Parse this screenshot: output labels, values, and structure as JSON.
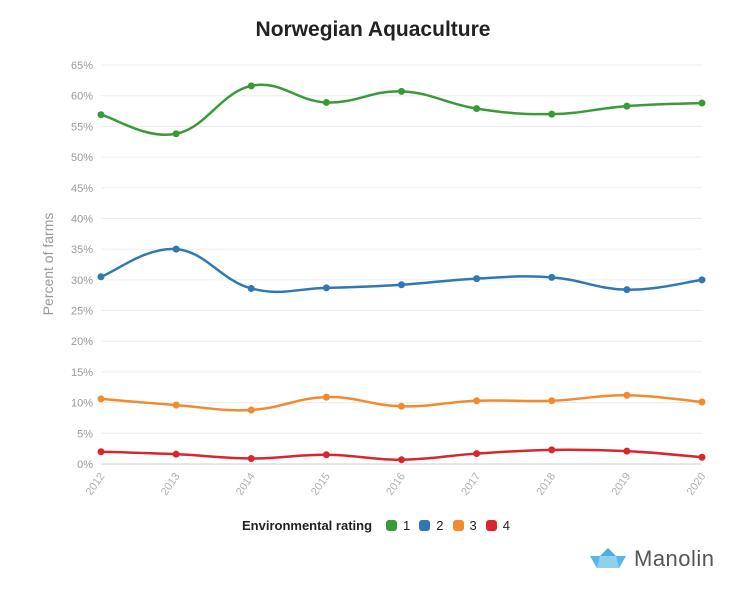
{
  "chart_data": {
    "type": "line",
    "title": "Norwegian Aquaculture",
    "xlabel": "",
    "ylabel": "Percent of farms",
    "x": [
      "2012",
      "2013",
      "2014",
      "2015",
      "2016",
      "2017",
      "2018",
      "2019",
      "2020"
    ],
    "ylim": [
      0,
      65
    ],
    "y_ticks": [
      "0%",
      "5%",
      "10%",
      "15%",
      "20%",
      "25%",
      "30%",
      "35%",
      "40%",
      "45%",
      "50%",
      "55%",
      "60%",
      "65%"
    ],
    "grid": true,
    "legend_title": "Environmental rating",
    "legend_position": "bottom",
    "series": [
      {
        "name": "1",
        "color": "#3a9a3a",
        "values": [
          56.9,
          53.8,
          61.6,
          58.9,
          60.7,
          57.9,
          57.0,
          58.3,
          58.8
        ]
      },
      {
        "name": "2",
        "color": "#2f78b5",
        "values": [
          30.5,
          35.0,
          28.6,
          28.7,
          29.2,
          30.2,
          30.4,
          28.4,
          30.0
        ]
      },
      {
        "name": "3",
        "color": "#f28a30",
        "values": [
          10.6,
          9.6,
          8.8,
          10.9,
          9.4,
          10.3,
          10.3,
          11.2,
          10.1
        ]
      },
      {
        "name": "4",
        "color": "#d8262e",
        "values": [
          2.0,
          1.6,
          0.9,
          1.5,
          0.7,
          1.7,
          2.3,
          2.1,
          1.1
        ]
      }
    ]
  },
  "branding": {
    "name": "Manolin",
    "icon": "paper-boat-icon"
  }
}
